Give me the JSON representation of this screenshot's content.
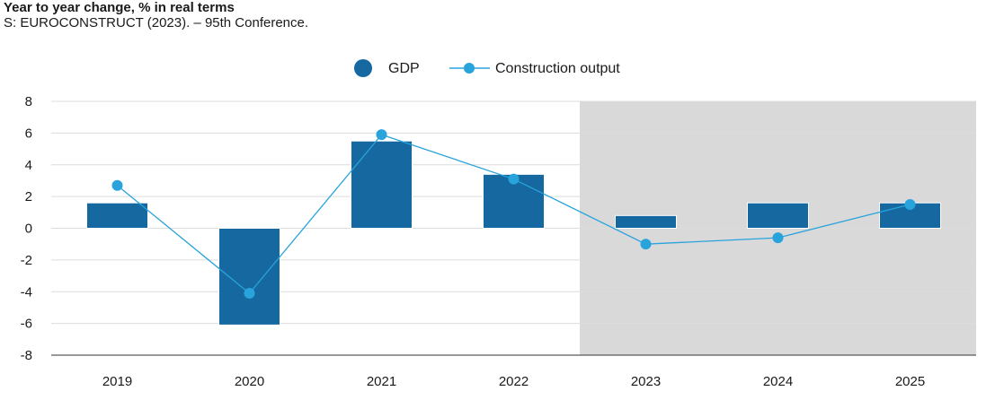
{
  "header": {
    "title": "Year to year change, % in real terms",
    "subtitle": "S: EUROCONSTRUCT (2023). – 95th Conference."
  },
  "colors": {
    "bar": "#1569a0",
    "line": "#29a3db",
    "forecast_shade": "#d9d9d9",
    "grid": "#dcdcdc"
  },
  "chart_data": {
    "type": "bar",
    "title": "Year to year change, % in real terms",
    "categories": [
      "2019",
      "2020",
      "2021",
      "2022",
      "2023",
      "2024",
      "2025"
    ],
    "series": [
      {
        "name": "GDP",
        "type": "bar",
        "values": [
          1.6,
          -6.1,
          5.5,
          3.4,
          0.8,
          1.6,
          1.6
        ]
      },
      {
        "name": "Construction output",
        "type": "line",
        "values": [
          2.7,
          -4.1,
          5.9,
          3.1,
          -1.0,
          -0.6,
          1.5
        ]
      }
    ],
    "ylim": [
      -8,
      8
    ],
    "yticks": [
      8,
      6,
      4,
      2,
      0,
      -2,
      -4,
      -6,
      -8
    ],
    "grid": true,
    "legend_position": "top-center",
    "shaded_categories": [
      "2023",
      "2024",
      "2025"
    ]
  }
}
